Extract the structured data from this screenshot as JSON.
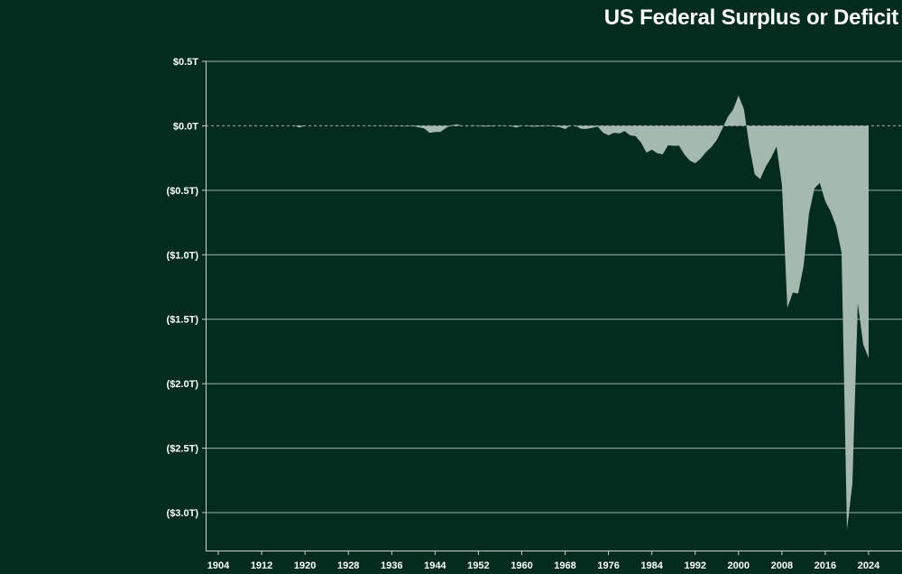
{
  "chart_data": {
    "type": "area",
    "title": "US Federal Surplus or Deficit",
    "xlabel": "",
    "ylabel": "",
    "x_ticks": [
      "1904",
      "1912",
      "1920",
      "1928",
      "1936",
      "1944",
      "1952",
      "1960",
      "1968",
      "1976",
      "1984",
      "1992",
      "2000",
      "2008",
      "2016",
      "2024"
    ],
    "y_ticks": [
      {
        "value": 0.5,
        "label": "$0.5T"
      },
      {
        "value": 0.0,
        "label": "$0.0T"
      },
      {
        "value": -0.5,
        "label": "($0.5T)"
      },
      {
        "value": -1.0,
        "label": "($1.0T)"
      },
      {
        "value": -1.5,
        "label": "($1.5T)"
      },
      {
        "value": -2.0,
        "label": "($2.0T)"
      },
      {
        "value": -2.5,
        "label": "($2.5T)"
      },
      {
        "value": -3.0,
        "label": "($3.0T)"
      }
    ],
    "xlim": [
      1902,
      2030
    ],
    "ylim": [
      -3.3,
      0.5
    ],
    "grid": "horizontal",
    "fill_color": "#a6b9b1",
    "points": [
      [
        1901,
        0.0
      ],
      [
        1918,
        0.0
      ],
      [
        1919,
        -0.013
      ],
      [
        1920,
        0.0
      ],
      [
        1928,
        0.001
      ],
      [
        1940,
        -0.003
      ],
      [
        1942,
        -0.02
      ],
      [
        1943,
        -0.055
      ],
      [
        1944,
        -0.048
      ],
      [
        1945,
        -0.047
      ],
      [
        1946,
        -0.016
      ],
      [
        1947,
        0.004
      ],
      [
        1948,
        0.012
      ],
      [
        1949,
        0.001
      ],
      [
        1950,
        -0.003
      ],
      [
        1951,
        0.006
      ],
      [
        1952,
        -0.002
      ],
      [
        1953,
        -0.006
      ],
      [
        1955,
        -0.003
      ],
      [
        1956,
        0.004
      ],
      [
        1957,
        0.003
      ],
      [
        1958,
        -0.003
      ],
      [
        1959,
        -0.013
      ],
      [
        1960,
        0.0
      ],
      [
        1962,
        -0.007
      ],
      [
        1965,
        -0.002
      ],
      [
        1967,
        -0.009
      ],
      [
        1968,
        -0.025
      ],
      [
        1969,
        0.003
      ],
      [
        1970,
        -0.003
      ],
      [
        1971,
        -0.023
      ],
      [
        1972,
        -0.023
      ],
      [
        1973,
        -0.015
      ],
      [
        1974,
        -0.006
      ],
      [
        1975,
        -0.053
      ],
      [
        1976,
        -0.074
      ],
      [
        1977,
        -0.054
      ],
      [
        1978,
        -0.059
      ],
      [
        1979,
        -0.041
      ],
      [
        1980,
        -0.074
      ],
      [
        1981,
        -0.079
      ],
      [
        1982,
        -0.128
      ],
      [
        1983,
        -0.208
      ],
      [
        1984,
        -0.185
      ],
      [
        1985,
        -0.212
      ],
      [
        1986,
        -0.221
      ],
      [
        1987,
        -0.15
      ],
      [
        1988,
        -0.155
      ],
      [
        1989,
        -0.153
      ],
      [
        1990,
        -0.221
      ],
      [
        1991,
        -0.269
      ],
      [
        1992,
        -0.29
      ],
      [
        1993,
        -0.255
      ],
      [
        1994,
        -0.203
      ],
      [
        1995,
        -0.164
      ],
      [
        1996,
        -0.107
      ],
      [
        1997,
        -0.022
      ],
      [
        1998,
        0.069
      ],
      [
        1999,
        0.126
      ],
      [
        2000,
        0.236
      ],
      [
        2001,
        0.128
      ],
      [
        2002,
        -0.158
      ],
      [
        2003,
        -0.378
      ],
      [
        2004,
        -0.413
      ],
      [
        2005,
        -0.318
      ],
      [
        2006,
        -0.248
      ],
      [
        2007,
        -0.161
      ],
      [
        2008,
        -0.459
      ],
      [
        2009,
        -1.413
      ],
      [
        2010,
        -1.294
      ],
      [
        2011,
        -1.3
      ],
      [
        2012,
        -1.087
      ],
      [
        2013,
        -0.68
      ],
      [
        2014,
        -0.485
      ],
      [
        2015,
        -0.442
      ],
      [
        2016,
        -0.585
      ],
      [
        2017,
        -0.665
      ],
      [
        2018,
        -0.779
      ],
      [
        2019,
        -0.984
      ],
      [
        2020,
        -3.132
      ],
      [
        2021,
        -2.775
      ],
      [
        2022,
        -1.375
      ],
      [
        2023,
        -1.695
      ],
      [
        2024,
        -1.8
      ]
    ]
  }
}
